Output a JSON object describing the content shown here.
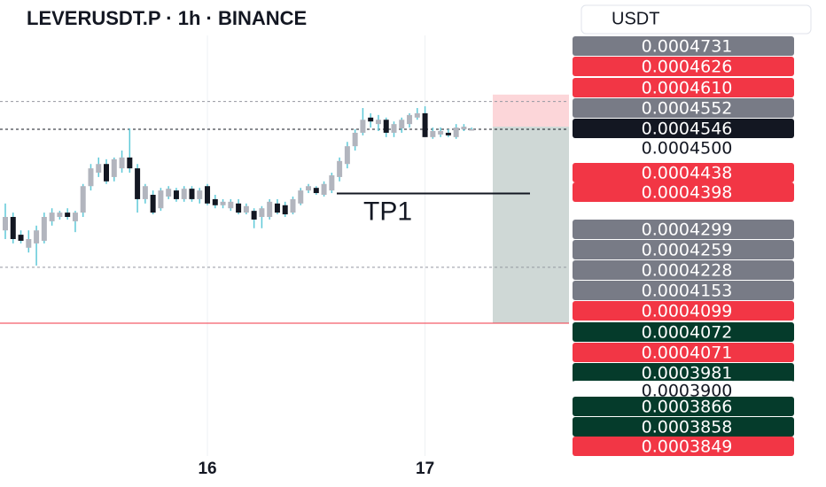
{
  "chart_data": {
    "type": "candlestick",
    "title": "LEVERUSDT.P · 1h · BINANCE",
    "currency": "USDT",
    "categories": [
      null,
      null,
      null,
      null,
      null,
      null,
      null,
      null,
      null,
      null,
      null,
      null,
      null,
      null,
      null,
      null,
      null,
      null,
      null,
      null,
      null,
      null,
      null,
      null,
      null,
      null,
      "16",
      null,
      null,
      null,
      null,
      null,
      null,
      null,
      null,
      null,
      null,
      null,
      null,
      null,
      null,
      null,
      null,
      null,
      null,
      null,
      null,
      null,
      null,
      null,
      null,
      null,
      null,
      null,
      "17",
      null,
      null,
      null,
      null,
      null,
      null
    ],
    "open": [
      0.0004313,
      0.0004344,
      0.0004303,
      0.0004273,
      0.0004283,
      0.0004289,
      0.0004334,
      0.0004344,
      0.0004354,
      0.0004334,
      0.0004354,
      0.0004415,
      0.0004446,
      0.0004466,
      0.0004436,
      0.0004456,
      0.0004481,
      0.0004456,
      0.0004385,
      0.0004395,
      0.0004364,
      0.0004391,
      0.0004405,
      0.0004385,
      0.0004409,
      0.0004385,
      0.0004415,
      0.0004385,
      0.0004371,
      0.0004364,
      0.0004375,
      0.0004354,
      0.0004358,
      0.0004344,
      0.0004344,
      0.0004375,
      0.0004371,
      0.0004354,
      0.0004375,
      0.0004405,
      0.0004411,
      0.0004395,
      0.0004405,
      0.0004436,
      0.0004466,
      0.0004507,
      0.0004538,
      0.0004573,
      0.0004558,
      0.0004568,
      0.0004538,
      0.0004548,
      0.0004558,
      0.0004573,
      0.0004583,
      0.0004528,
      0.0004534,
      0.0004538,
      0.0004528,
      0.0004546,
      0.0004546
    ],
    "high": [
      0.0004375,
      0.0004354,
      0.0004313,
      0.0004313,
      0.0004324,
      0.0004354,
      0.0004364,
      0.0004358,
      0.0004364,
      0.0004358,
      0.000442,
      0.0004466,
      0.0004481,
      0.0004477,
      0.0004481,
      0.0004497,
      0.0004548,
      0.0004466,
      0.000442,
      0.0004405,
      0.0004411,
      0.0004415,
      0.0004411,
      0.0004415,
      0.0004415,
      0.0004411,
      0.000442,
      0.0004395,
      0.0004385,
      0.0004385,
      0.0004385,
      0.0004375,
      0.0004364,
      0.0004369,
      0.0004385,
      0.0004385,
      0.0004379,
      0.0004391,
      0.0004411,
      0.000442,
      0.0004415,
      0.0004426,
      0.0004446,
      0.0004481,
      0.0004517,
      0.0004546,
      0.0004595,
      0.0004583,
      0.0004579,
      0.0004573,
      0.0004564,
      0.0004573,
      0.0004583,
      0.0004595,
      0.0004599,
      0.000455,
      0.000455,
      0.0004546,
      0.0004558,
      0.0004558,
      0.000455
    ],
    "low": [
      0.0004293,
      0.0004283,
      0.0004283,
      0.0004262,
      0.0004232,
      0.0004283,
      0.0004324,
      0.0004338,
      0.0004338,
      0.0004309,
      0.0004344,
      0.0004405,
      0.0004436,
      0.000442,
      0.0004426,
      0.0004446,
      0.0004446,
      0.0004354,
      0.0004375,
      0.000435,
      0.0004358,
      0.0004385,
      0.0004379,
      0.0004379,
      0.0004379,
      0.0004375,
      0.0004371,
      0.0004364,
      0.0004364,
      0.0004358,
      0.000435,
      0.000435,
      0.0004318,
      0.0004318,
      0.0004338,
      0.000435,
      0.0004344,
      0.000435,
      0.0004371,
      0.0004399,
      0.0004395,
      0.0004391,
      0.0004399,
      0.0004426,
      0.0004456,
      0.0004497,
      0.0004532,
      0.000455,
      0.0004542,
      0.0004528,
      0.0004528,
      0.0004538,
      0.000455,
      0.0004568,
      0.0004528,
      0.0004524,
      0.0004528,
      0.0004528,
      0.0004524,
      0.0004542,
      0.0004546
    ],
    "close": [
      0.0004344,
      0.0004293,
      0.0004289,
      0.0004293,
      0.0004313,
      0.0004344,
      0.0004354,
      0.0004354,
      0.0004344,
      0.0004354,
      0.0004415,
      0.0004456,
      0.0004466,
      0.0004426,
      0.0004477,
      0.0004481,
      0.0004456,
      0.0004385,
      0.0004415,
      0.0004354,
      0.0004405,
      0.0004409,
      0.0004385,
      0.0004409,
      0.0004385,
      0.0004405,
      0.0004375,
      0.0004371,
      0.0004379,
      0.0004379,
      0.0004354,
      0.0004369,
      0.0004338,
      0.0004364,
      0.0004379,
      0.0004354,
      0.000435,
      0.0004385,
      0.0004405,
      0.0004415,
      0.0004399,
      0.000442,
      0.000444,
      0.0004473,
      0.0004507,
      0.0004538,
      0.0004568,
      0.0004564,
      0.0004568,
      0.0004538,
      0.0004558,
      0.0004568,
      0.0004579,
      0.0004583,
      0.0004528,
      0.0004542,
      0.0004542,
      0.0004532,
      0.000455,
      0.0004552,
      0.0004546
    ],
    "up_color": "#b2b5be",
    "down_color": "#131722",
    "wick_color": "#5fc9d8",
    "ylim": [
      0.0003793,
      0.0004844
    ],
    "price_lines": [
      {
        "value": 0.000461,
        "color": "#9598a1",
        "style": "dashed"
      },
      {
        "value": 0.0004546,
        "color": "#131722",
        "style": "dashed"
      },
      {
        "value": 0.0004228,
        "color": "#9598a1",
        "style": "dashed"
      },
      {
        "value": 0.0004099,
        "color": "#f23645",
        "style": "solid"
      }
    ],
    "position": {
      "stop": 0.0004626,
      "entry": 0.0004552,
      "target": 0.0004099,
      "stop_color": "#fcd6d9",
      "target_color": "#cfd8d6"
    },
    "annotation": {
      "text": "TP1",
      "value": 0.0004398
    },
    "price_labels": [
      {
        "value": 0.0004731,
        "label": "0.0004731",
        "color": "#787b86"
      },
      {
        "value": 0.0004626,
        "label": "0.0004626",
        "color": "#f23645"
      },
      {
        "value": 0.000461,
        "label": "0.0004610",
        "color": "#f23645"
      },
      {
        "value": 0.0004552,
        "label": "0.0004552",
        "color": "#787b86"
      },
      {
        "value": 0.0004546,
        "label": "0.0004546",
        "color": "#131722"
      },
      {
        "value": 0.00045,
        "label": "0.0004500",
        "color": "#ffffff"
      },
      {
        "value": 0.0004438,
        "label": "0.0004438",
        "color": "#f23645"
      },
      {
        "value": 0.0004398,
        "label": "0.0004398",
        "color": "#f23645"
      },
      {
        "value": 0.0004299,
        "label": "0.0004299",
        "color": "#787b86"
      },
      {
        "value": 0.0004259,
        "label": "0.0004259",
        "color": "#787b86"
      },
      {
        "value": 0.0004228,
        "label": "0.0004228",
        "color": "#787b86"
      },
      {
        "value": 0.0004153,
        "label": "0.0004153",
        "color": "#787b86"
      },
      {
        "value": 0.0004099,
        "label": "0.0004099",
        "color": "#f23645"
      },
      {
        "value": 0.0004072,
        "label": "0.0004072",
        "color": "#053b2b"
      },
      {
        "value": 0.0004071,
        "label": "0.0004071",
        "color": "#f23645"
      },
      {
        "value": 0.0003981,
        "label": "0.0003981",
        "color": "#053b2b"
      },
      {
        "value": 0.00039,
        "label": "0.0003900",
        "color": "#ffffff"
      },
      {
        "value": 0.0003866,
        "label": "0.0003866",
        "color": "#053b2b"
      },
      {
        "value": 0.0003858,
        "label": "0.0003858",
        "color": "#053b2b"
      },
      {
        "value": 0.0003849,
        "label": "0.0003849",
        "color": "#f23645"
      }
    ]
  }
}
